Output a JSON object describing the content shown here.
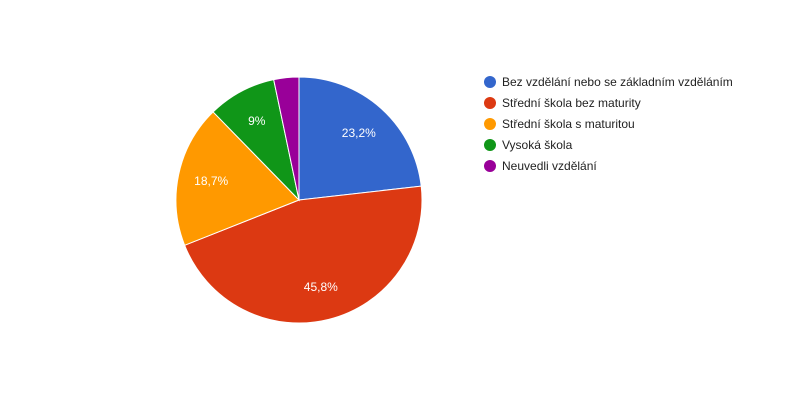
{
  "chart_data": {
    "type": "pie",
    "title": "",
    "legend_position": "right",
    "slices": [
      {
        "label": "Bez vzdělání nebo se základním vzděláním",
        "value": 23.2,
        "display": "23,2%",
        "color": "#3366cc"
      },
      {
        "label": "Střední škola bez maturity",
        "value": 45.8,
        "display": "45,8%",
        "color": "#dc3912"
      },
      {
        "label": "Střední škola s maturitou",
        "value": 18.7,
        "display": "18,7%",
        "color": "#ff9900"
      },
      {
        "label": "Vysoká škola",
        "value": 9.0,
        "display": "9%",
        "color": "#109618"
      },
      {
        "label": "Neuvedli vzdělání",
        "value": 3.3,
        "display": "",
        "color": "#990099"
      }
    ]
  }
}
